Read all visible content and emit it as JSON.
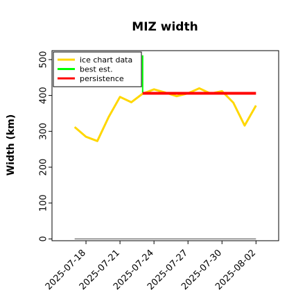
{
  "chart_data": {
    "type": "line",
    "title": "MIZ width",
    "xlabel": "",
    "ylabel": "Width (km)",
    "ylim": [
      -5,
      525
    ],
    "yticks": [
      0,
      100,
      200,
      300,
      400,
      500
    ],
    "x_tick_labels": [
      "2025-07-18",
      "2025-07-21",
      "2025-07-24",
      "2025-07-27",
      "2025-07-30",
      "2025-08-02"
    ],
    "x_range": [
      "2025-07-15",
      "2025-08-04"
    ],
    "grid": false,
    "legend_position": "top-left",
    "series": [
      {
        "name": "ice chart data",
        "color": "#FFD700",
        "x": [
          "2025-07-17",
          "2025-07-18",
          "2025-07-19",
          "2025-07-20",
          "2025-07-21",
          "2025-07-22",
          "2025-07-23",
          "2025-07-24",
          "2025-07-25",
          "2025-07-26",
          "2025-07-27",
          "2025-07-28",
          "2025-07-29",
          "2025-07-30",
          "2025-07-31",
          "2025-08-01",
          "2025-08-02"
        ],
        "values": [
          312,
          285,
          273,
          340,
          396,
          381,
          405,
          417,
          408,
          398,
          406,
          420,
          405,
          412,
          380,
          316,
          372
        ]
      },
      {
        "name": "best est.",
        "color": "#00FF00",
        "x": [
          "2025-07-23",
          "2025-07-23"
        ],
        "values": [
          408,
          512
        ]
      },
      {
        "name": "persistence",
        "color": "#FF0000",
        "x": [
          "2025-07-23",
          "2025-08-02"
        ],
        "values": [
          406,
          406
        ]
      },
      {
        "name": "",
        "color": "#808080",
        "x": [
          "2025-07-17",
          "2025-08-02"
        ],
        "values": [
          0,
          0
        ]
      }
    ]
  }
}
